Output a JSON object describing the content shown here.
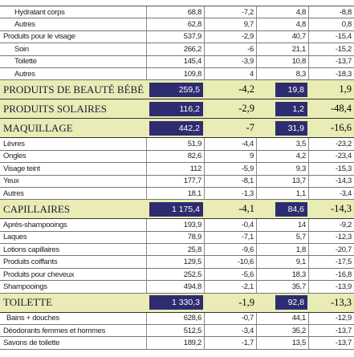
{
  "table": {
    "rows": [
      [
        "Hydratant corps",
        "68,8",
        "-7,2",
        "4,8",
        "-8,8"
      ],
      [
        "Autres",
        "62,8",
        "9,7",
        "4,8",
        "0,8"
      ],
      [
        "Produits pour le visage",
        "537,9",
        "-2,9",
        "40,7",
        "-15,4"
      ],
      [
        "Soin",
        "266,2",
        "-6",
        "21,1",
        "-15,2"
      ],
      [
        "Toilette",
        "145,4",
        "-3,9",
        "10,8",
        "-13,7"
      ],
      [
        "Autres",
        "109,8",
        "4",
        "8,3",
        "-18,3"
      ],
      [
        "PRODUITS DE BEAUTÉ BÉBÉ",
        "259,5",
        "-4,2",
        "19,8",
        "1,9"
      ],
      [
        "PRODUITS SOLAIRES",
        "116,2",
        "-2,9",
        "1,2",
        "-48,4"
      ],
      [
        "MAQUILLAGE",
        "442,2",
        "-7",
        "31,9",
        "-16,6"
      ],
      [
        "Lèvres",
        "51,9",
        "-4,4",
        "3,5",
        "-23,2"
      ],
      [
        "Ongles",
        "82,6",
        "9",
        "4,2",
        "-23,4"
      ],
      [
        "Visage teint",
        "112",
        "-5,9",
        "9,3",
        "-15,3"
      ],
      [
        "Yeux",
        "177,7",
        "-8,1",
        "13,7",
        "-14,3"
      ],
      [
        "Autres",
        "18,1",
        "-1,3",
        "1,1",
        "-3,4"
      ],
      [
        "CAPILLAIRES",
        "1 175,4",
        "-4,1",
        "84,6",
        "-14,3"
      ],
      [
        "Après-shampooings",
        "193,9",
        "-0,4",
        "14",
        "-9,2"
      ],
      [
        "Laques",
        "78,9",
        "-7,1",
        "5,7",
        "-12,3"
      ],
      [
        "Lotions capillaires",
        "25,8",
        "-9,6",
        "1,8",
        "-20,7"
      ],
      [
        "Produits coiffants",
        "129,5",
        "-10,6",
        "9,1",
        "-17,5"
      ],
      [
        "Produits pour cheveux",
        "252,5",
        "-5,6",
        "18,3",
        "-16,8"
      ],
      [
        "Shampooings",
        "494,8",
        "-2,1",
        "35,7",
        "-13,9"
      ],
      [
        "TOILETTE",
        "1 330,3",
        "-1,9",
        "92,8",
        "-13,3"
      ],
      [
        "Bains + douches",
        "628,6",
        "-0,7",
        "44,1",
        "-12,9"
      ],
      [
        "Déodorants femmes et hommes",
        "512,5",
        "-3,4",
        "35,2",
        "-13,7"
      ],
      [
        "Savons de toilette",
        "189,2",
        "-1,7",
        "13,5",
        "-13,7"
      ]
    ]
  }
}
